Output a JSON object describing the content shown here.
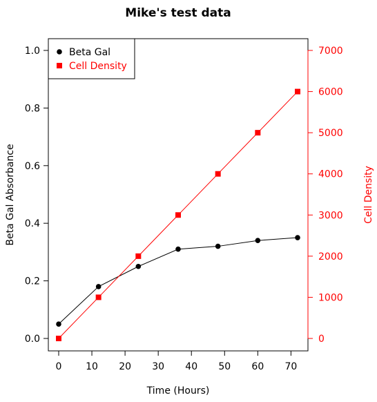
{
  "chart_data": {
    "type": "line",
    "title": "Mike's test data",
    "xlabel": "Time (Hours)",
    "ylabel": "Beta Gal Absorbance",
    "y2label": "Cell Density",
    "xlim": [
      0,
      72
    ],
    "ylim": [
      0,
      1.0
    ],
    "y2lim": [
      0,
      7000
    ],
    "xticks": [
      "0",
      "10",
      "20",
      "30",
      "40",
      "50",
      "60",
      "70"
    ],
    "yticks": [
      "0.0",
      "0.2",
      "0.4",
      "0.6",
      "0.8",
      "1.0"
    ],
    "y2ticks": [
      "0",
      "1000",
      "2000",
      "3000",
      "4000",
      "5000",
      "6000",
      "7000"
    ],
    "legend_position": "top-left",
    "grid": false,
    "colors": {
      "beta_gal": "#000000",
      "cell_density": "#ff0000"
    },
    "series": [
      {
        "name": "Beta Gal",
        "axis": "left",
        "marker": "circle",
        "x": [
          0,
          12,
          24,
          36,
          48,
          60,
          72
        ],
        "y": [
          0.05,
          0.18,
          0.25,
          0.31,
          0.32,
          0.34,
          0.35
        ]
      },
      {
        "name": "Cell Density",
        "axis": "right",
        "marker": "square",
        "x": [
          0,
          12,
          24,
          36,
          48,
          60,
          72
        ],
        "y": [
          0,
          1000,
          2000,
          3000,
          4000,
          5000,
          6000
        ]
      }
    ]
  }
}
